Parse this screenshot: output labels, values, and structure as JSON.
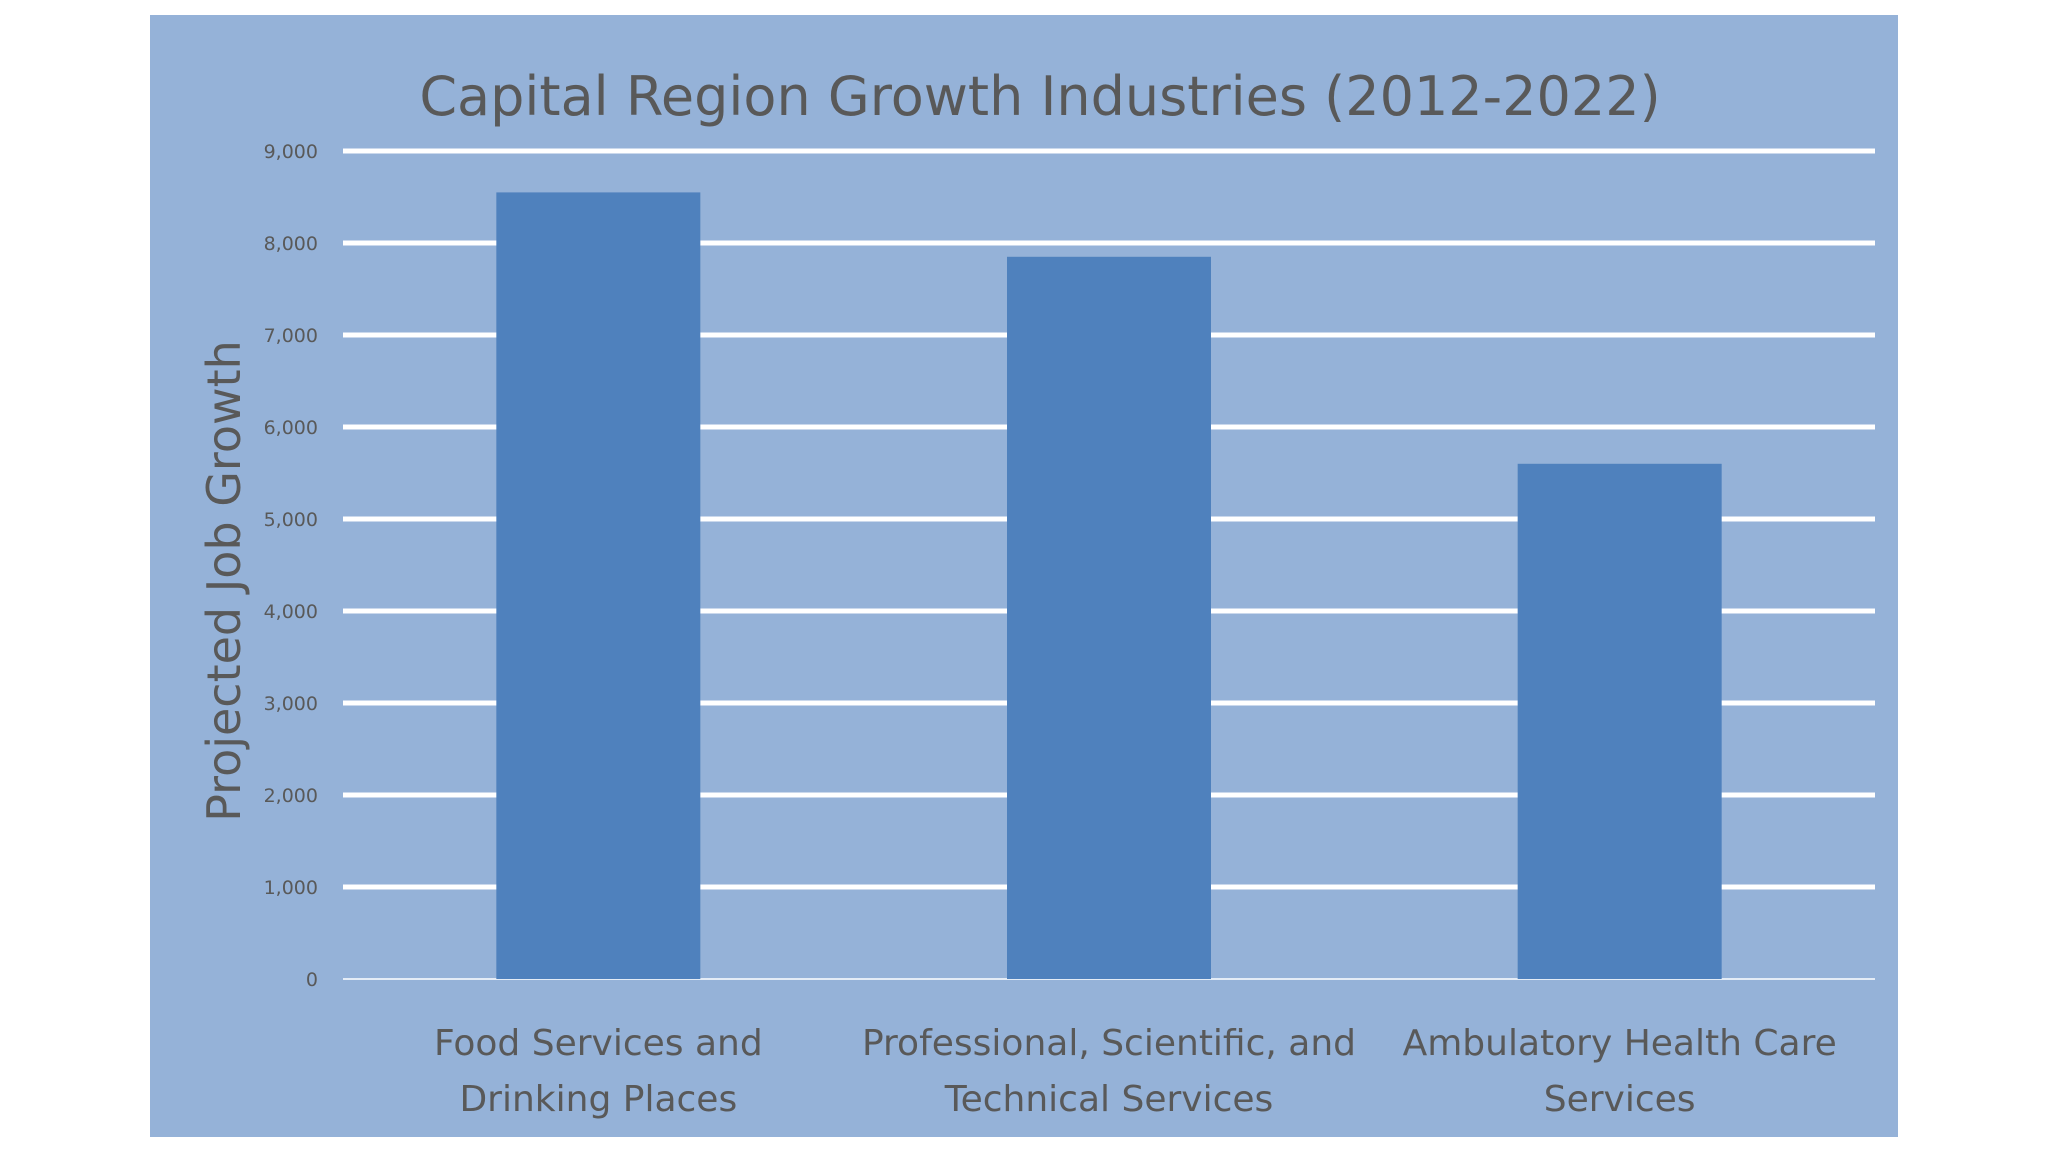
{
  "chart_data": {
    "type": "bar",
    "title": "Capital Region Growth Industries (2012-2022)",
    "ylabel": "Projected Job Growth",
    "xlabel": "",
    "categories": [
      [
        "Food Services and",
        "Drinking Places"
      ],
      [
        "Professional, Scientific, and",
        "Technical Services"
      ],
      [
        "Ambulatory Health Care",
        "Services"
      ]
    ],
    "values": [
      8550,
      7850,
      5600
    ],
    "ylim": [
      0,
      9000
    ],
    "yticks": [
      0,
      1000,
      2000,
      3000,
      4000,
      5000,
      6000,
      7000,
      8000,
      9000
    ],
    "ytick_labels": [
      "0",
      "1,000",
      "2,000",
      "3,000",
      "4,000",
      "5,000",
      "6,000",
      "7,000",
      "8,000",
      "9,000"
    ],
    "grid": true,
    "legend": "none",
    "colors": {
      "background": "#95b2d8",
      "bar": "#4f81bd",
      "grid": "#ffffff",
      "text": "#595959"
    }
  }
}
